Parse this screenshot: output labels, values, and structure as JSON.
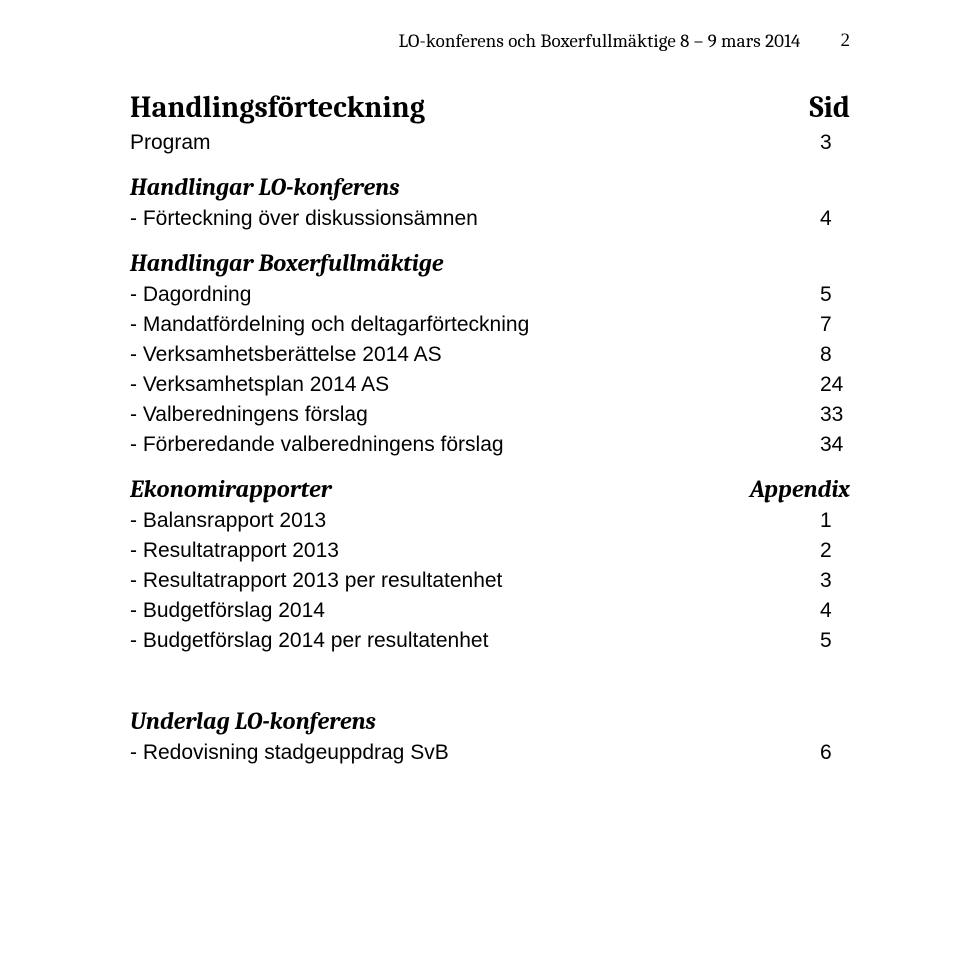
{
  "header": {
    "text": "LO-konferens och Boxerfullmäktige 8 – 9 mars 2014",
    "page_number": "2"
  },
  "toc": {
    "title": {
      "label": "Handlingsförteckning",
      "value": "Sid"
    },
    "groups": [
      {
        "heading": null,
        "items": [
          {
            "label": "Program",
            "value": "3"
          }
        ]
      },
      {
        "heading": {
          "label": "Handlingar LO-konferens",
          "value": ""
        },
        "items": [
          {
            "label": "- Förteckning över diskussionsämnen",
            "value": "4"
          }
        ]
      },
      {
        "heading": {
          "label": "Handlingar Boxerfullmäktige",
          "value": ""
        },
        "items": [
          {
            "label": "- Dagordning",
            "value": "5"
          },
          {
            "label": "- Mandatfördelning och deltagarförteckning",
            "value": "7"
          },
          {
            "label": "- Verksamhetsberättelse 2014 AS",
            "value": "8"
          },
          {
            "label": "- Verksamhetsplan 2014 AS",
            "value": "24"
          },
          {
            "label": "- Valberedningens förslag",
            "value": "33"
          },
          {
            "label": "- Förberedande valberedningens förslag",
            "value": "34"
          }
        ]
      },
      {
        "heading": {
          "label": "Ekonomirapporter",
          "value": "Appendix"
        },
        "items": [
          {
            "label": "- Balansrapport 2013",
            "value": "1"
          },
          {
            "label": "- Resultatrapport 2013",
            "value": "2"
          },
          {
            "label": "- Resultatrapport 2013 per resultatenhet",
            "value": "3"
          },
          {
            "label": "- Budgetförslag 2014",
            "value": "4"
          },
          {
            "label": "- Budgetförslag 2014 per resultatenhet",
            "value": "5"
          }
        ]
      },
      {
        "heading": {
          "label": "Underlag LO-konferens",
          "value": ""
        },
        "items": [
          {
            "label": "- Redovisning stadgeuppdrag SvB",
            "value": "6"
          }
        ]
      }
    ]
  }
}
